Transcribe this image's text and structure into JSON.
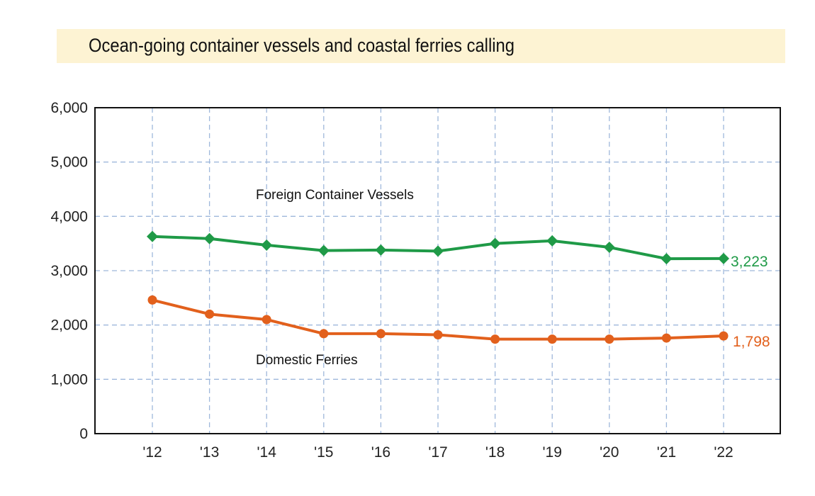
{
  "title": "Ocean-going container vessels and coastal ferries calling",
  "colors": {
    "container": "#1f9a47",
    "ferries": "#e2601c",
    "grid": "#9fb8db",
    "title_bg": "#fdf3d3"
  },
  "chart_data": {
    "type": "line",
    "title": "Ocean-going container vessels and coastal ferries calling",
    "xlabel": "",
    "ylabel": "",
    "categories": [
      "'12",
      "'13",
      "'14",
      "'15",
      "'16",
      "'17",
      "'18",
      "'19",
      "'20",
      "'21",
      "'22"
    ],
    "ylim": [
      0,
      6000
    ],
    "yticks": [
      "0",
      "1,000",
      "2,000",
      "3,000",
      "4,000",
      "5,000",
      "6,000"
    ],
    "grid": true,
    "series": [
      {
        "name": "Foreign Container Vessels",
        "marker": "diamond",
        "values": [
          3630,
          3590,
          3470,
          3370,
          3380,
          3360,
          3500,
          3550,
          3430,
          3220,
          3223
        ],
        "end_label": "3,223"
      },
      {
        "name": "Domestic Ferries",
        "marker": "circle",
        "values": [
          2460,
          2200,
          2100,
          1840,
          1840,
          1820,
          1740,
          1740,
          1740,
          1760,
          1798
        ],
        "end_label": "1,798"
      }
    ]
  }
}
